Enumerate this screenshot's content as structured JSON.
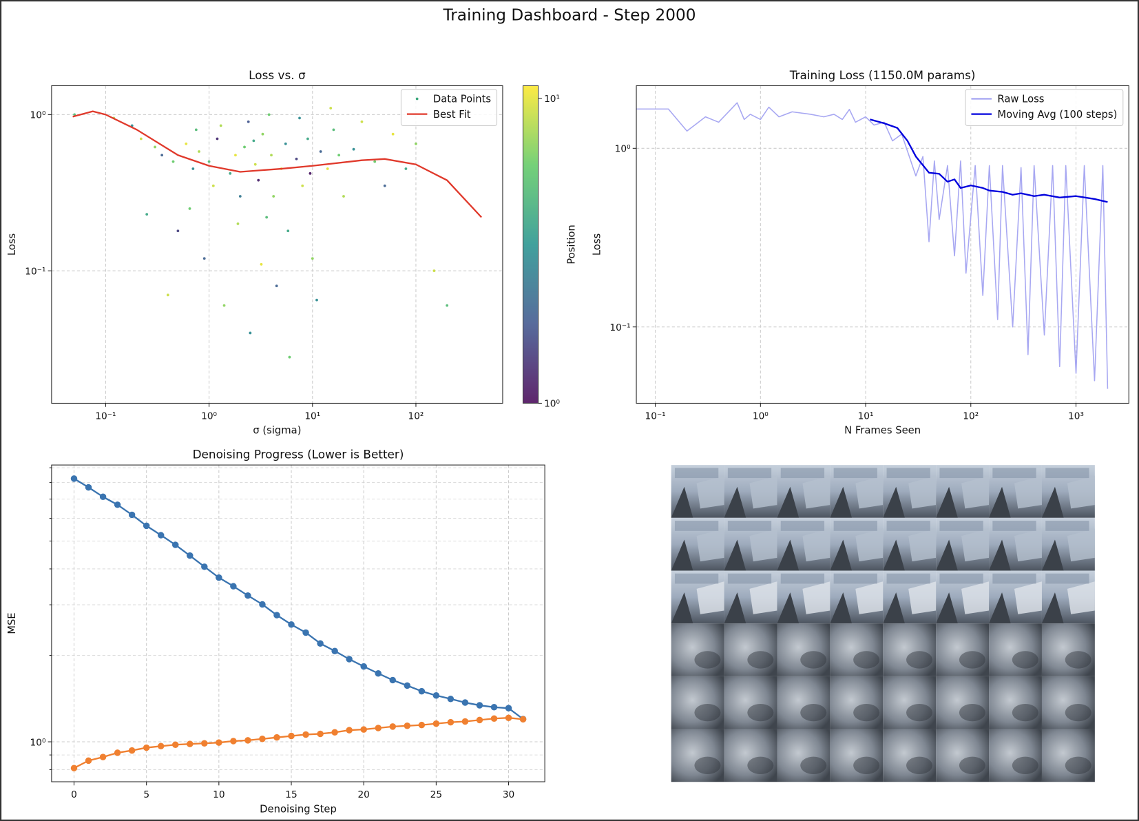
{
  "title": "Training Dashboard - Step 2000",
  "chart_data": [
    {
      "type": "scatter",
      "title": "Loss vs. σ",
      "xlabel": "σ (sigma)",
      "ylabel": "Loss",
      "xlog": true,
      "ylog": true,
      "grid": true,
      "legend": "upper right",
      "xlim": [
        0.03,
        690
      ],
      "ylim": [
        0.0142,
        1.53
      ],
      "xticks": [
        {
          "value": 0.1,
          "label": "10⁻¹"
        },
        {
          "value": 1,
          "label": "10⁰"
        },
        {
          "value": 10,
          "label": "10¹"
        },
        {
          "value": 100,
          "label": "10²"
        }
      ],
      "yticks": [
        {
          "value": 0.1,
          "label": "10⁻¹"
        },
        {
          "value": 1,
          "label": "10⁰"
        }
      ],
      "colorbar": {
        "label": "Position",
        "colormap": "viridis",
        "log": true,
        "lim": [
          1,
          11
        ],
        "ticks": [
          {
            "value": 1,
            "label": "10⁰"
          },
          {
            "value": 10,
            "label": "10¹"
          }
        ]
      },
      "series": [
        {
          "name": "Data Points",
          "type": "scatter",
          "x": [
            0.05,
            0.12,
            0.18,
            0.22,
            0.25,
            0.3,
            0.35,
            0.4,
            0.45,
            0.5,
            0.6,
            0.7,
            0.8,
            0.9,
            1.0,
            1.1,
            1.2,
            1.4,
            1.6,
            1.8,
            2.0,
            2.2,
            2.5,
            2.8,
            3.0,
            3.3,
            3.6,
            4.0,
            4.5,
            5.0,
            5.5,
            6.0,
            7.0,
            8.0,
            9.0,
            10,
            12,
            14,
            16,
            20,
            25,
            30,
            40,
            50,
            60,
            80,
            100,
            150,
            200,
            1.3,
            2.4,
            3.8,
            7.5,
            15,
            0.65,
            1.9,
            5.8,
            3.2,
            11,
            0.75,
            4.2,
            9.5,
            2.7,
            18
          ],
          "values": [
            1.0,
            0.95,
            0.85,
            0.7,
            0.23,
            0.62,
            0.55,
            0.07,
            0.5,
            0.18,
            0.65,
            0.45,
            0.58,
            0.12,
            0.5,
            0.35,
            0.7,
            0.06,
            0.42,
            0.55,
            0.3,
            0.62,
            0.04,
            0.48,
            0.38,
            0.75,
            0.22,
            0.55,
            0.08,
            0.45,
            0.65,
            0.028,
            0.52,
            0.35,
            0.7,
            0.12,
            0.58,
            0.45,
            0.8,
            0.3,
            0.6,
            0.9,
            0.5,
            0.35,
            0.75,
            0.45,
            0.65,
            0.1,
            0.06,
            0.85,
            0.9,
            1.0,
            0.95,
            1.1,
            0.25,
            0.2,
            0.18,
            0.11,
            0.065,
            0.8,
            0.3,
            0.42,
            0.68,
            0.55
          ],
          "color_values": [
            5,
            8,
            3,
            9,
            4,
            7,
            2,
            9,
            6,
            1.5,
            10,
            3,
            8,
            2,
            5,
            9,
            1.3,
            7,
            4,
            10,
            2.5,
            6,
            3,
            9,
            1.2,
            7,
            5,
            8,
            2,
            10,
            3,
            6,
            1.5,
            9,
            4,
            7,
            2,
            10,
            5,
            8,
            3,
            9,
            6,
            2,
            10,
            4,
            7,
            9,
            5,
            8,
            1.8,
            6,
            3,
            9,
            6,
            8,
            4,
            10,
            3,
            5,
            7,
            1.1,
            4,
            6
          ]
        },
        {
          "name": "Best Fit",
          "type": "line",
          "color": "#e0392b",
          "x": [
            0.048,
            0.075,
            0.1,
            0.2,
            0.5,
            1,
            2,
            5,
            10,
            30,
            50,
            100,
            200,
            430
          ],
          "values": [
            0.97,
            1.05,
            1.0,
            0.8,
            0.55,
            0.47,
            0.43,
            0.45,
            0.47,
            0.51,
            0.52,
            0.48,
            0.38,
            0.22
          ]
        }
      ]
    },
    {
      "type": "line",
      "title": "Training Loss (1150.0M params)",
      "xlabel": "N Frames Seen",
      "ylabel": "Loss",
      "xlog": true,
      "ylog": true,
      "grid": true,
      "legend": "upper right",
      "xlim": [
        0.066,
        3180
      ],
      "ylim": [
        0.0374,
        2.24
      ],
      "xticks": [
        {
          "value": 0.1,
          "label": "10⁻¹"
        },
        {
          "value": 1,
          "label": "10⁰"
        },
        {
          "value": 10,
          "label": "10¹"
        },
        {
          "value": 100,
          "label": "10²"
        },
        {
          "value": 1000,
          "label": "10³"
        }
      ],
      "yticks": [
        {
          "value": 0.1,
          "label": "10⁻¹"
        },
        {
          "value": 1,
          "label": "10⁰"
        }
      ],
      "series": [
        {
          "name": "Raw Loss",
          "color": "#a8a8f2",
          "x": [
            0.066,
            0.133,
            0.2,
            0.3,
            0.4,
            0.6,
            0.7,
            0.8,
            1.0,
            1.2,
            1.5,
            2,
            3,
            4,
            5,
            6,
            7,
            8,
            10,
            12,
            15,
            18,
            22,
            26,
            30,
            35,
            40,
            45,
            50,
            60,
            70,
            80,
            90,
            110,
            130,
            150,
            180,
            200,
            250,
            300,
            350,
            400,
            500,
            600,
            700,
            800,
            1000,
            1200,
            1500,
            1800,
            2000
          ],
          "values": [
            1.66,
            1.66,
            1.25,
            1.5,
            1.4,
            1.8,
            1.45,
            1.55,
            1.45,
            1.7,
            1.5,
            1.6,
            1.55,
            1.5,
            1.55,
            1.45,
            1.65,
            1.4,
            1.5,
            1.35,
            1.4,
            1.1,
            1.2,
            0.9,
            0.7,
            0.9,
            0.3,
            0.85,
            0.4,
            0.8,
            0.25,
            0.85,
            0.2,
            0.8,
            0.15,
            0.8,
            0.11,
            0.8,
            0.1,
            0.78,
            0.07,
            0.8,
            0.09,
            0.8,
            0.06,
            0.8,
            0.055,
            0.8,
            0.05,
            0.8,
            0.045
          ]
        },
        {
          "name": "Moving Avg (100 steps)",
          "color": "#0000dd",
          "x": [
            11,
            15,
            20,
            25,
            30,
            40,
            50,
            60,
            70,
            80,
            100,
            130,
            150,
            200,
            250,
            300,
            400,
            500,
            700,
            1000,
            1500,
            2000
          ],
          "values": [
            1.45,
            1.38,
            1.3,
            1.1,
            0.9,
            0.73,
            0.72,
            0.65,
            0.67,
            0.6,
            0.62,
            0.6,
            0.58,
            0.57,
            0.55,
            0.56,
            0.54,
            0.55,
            0.53,
            0.54,
            0.52,
            0.5
          ]
        }
      ]
    },
    {
      "type": "line",
      "title": "Denoising Progress (Lower is Better)",
      "xlabel": "Denoising Step",
      "ylabel": "MSE",
      "ylog": true,
      "grid": true,
      "markers": true,
      "xlim": [
        -1.55,
        32.5
      ],
      "ylim": [
        0.726,
        9.2
      ],
      "xticks": [
        0,
        5,
        10,
        15,
        20,
        25,
        30
      ],
      "yticks": [
        {
          "value": 1,
          "label": "10⁰"
        }
      ],
      "yminor": [
        0.8,
        0.9,
        2,
        3,
        4,
        5,
        6,
        7,
        8,
        9
      ],
      "x": [
        0,
        1,
        2,
        3,
        4,
        5,
        6,
        7,
        8,
        9,
        10,
        11,
        12,
        13,
        14,
        15,
        16,
        17,
        18,
        19,
        20,
        21,
        22,
        23,
        24,
        25,
        26,
        27,
        28,
        29,
        30,
        31
      ],
      "series": [
        {
          "color": "#3a74b0",
          "values": [
            8.25,
            7.69,
            7.13,
            6.69,
            6.17,
            5.65,
            5.24,
            4.85,
            4.45,
            4.07,
            3.73,
            3.48,
            3.23,
            3.01,
            2.76,
            2.56,
            2.4,
            2.2,
            2.07,
            1.94,
            1.83,
            1.73,
            1.64,
            1.57,
            1.5,
            1.45,
            1.41,
            1.37,
            1.34,
            1.32,
            1.31,
            1.2
          ]
        },
        {
          "color": "#f08030",
          "values": [
            0.81,
            0.86,
            0.885,
            0.916,
            0.933,
            0.954,
            0.966,
            0.977,
            0.983,
            0.988,
            0.994,
            1.006,
            1.012,
            1.024,
            1.036,
            1.048,
            1.06,
            1.066,
            1.079,
            1.098,
            1.104,
            1.117,
            1.13,
            1.137,
            1.144,
            1.157,
            1.17,
            1.177,
            1.191,
            1.205,
            1.212,
            1.198
          ]
        }
      ]
    }
  ]
}
